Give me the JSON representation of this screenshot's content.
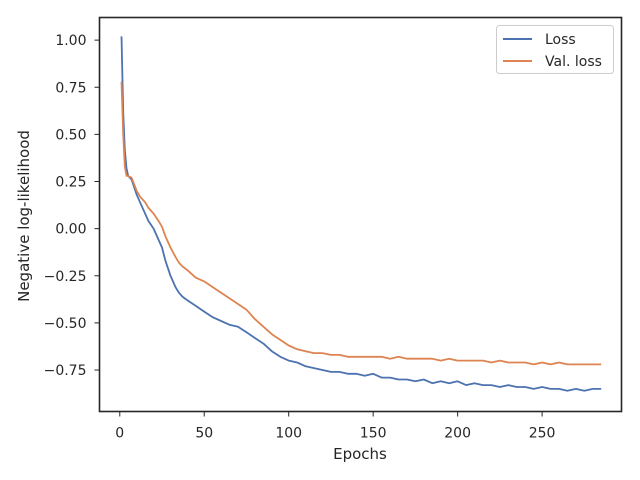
{
  "chart_data": {
    "type": "line",
    "title": "",
    "xlabel": "Epochs",
    "ylabel": "Negative log-likelihood",
    "xlim": [
      -12,
      297
    ],
    "ylim": [
      -0.97,
      1.12
    ],
    "xticks": [
      0,
      50,
      100,
      150,
      200,
      250
    ],
    "yticks": [
      1.0,
      0.75,
      0.5,
      0.25,
      0.0,
      -0.25,
      -0.5,
      -0.75
    ],
    "ytick_labels": [
      "1.00",
      "0.75",
      "0.50",
      "0.25",
      "0.00",
      "−0.25",
      "−0.50",
      "−0.75"
    ],
    "grid": false,
    "legend": "top-right",
    "series": [
      {
        "name": "Loss",
        "color": "#4c72b0",
        "x": [
          1,
          2,
          3,
          4,
          5,
          7,
          10,
          12,
          15,
          17,
          20,
          23,
          25,
          27,
          30,
          33,
          35,
          37,
          40,
          45,
          50,
          55,
          60,
          65,
          70,
          75,
          80,
          85,
          90,
          95,
          100,
          105,
          110,
          115,
          120,
          125,
          130,
          135,
          140,
          145,
          150,
          155,
          160,
          165,
          170,
          175,
          180,
          185,
          190,
          195,
          200,
          205,
          210,
          215,
          220,
          225,
          230,
          235,
          240,
          245,
          250,
          255,
          260,
          265,
          270,
          275,
          280,
          285
        ],
        "y": [
          1.02,
          0.62,
          0.42,
          0.32,
          0.28,
          0.26,
          0.18,
          0.14,
          0.08,
          0.04,
          0.0,
          -0.06,
          -0.1,
          -0.17,
          -0.25,
          -0.31,
          -0.34,
          -0.36,
          -0.38,
          -0.41,
          -0.44,
          -0.47,
          -0.49,
          -0.51,
          -0.52,
          -0.55,
          -0.58,
          -0.61,
          -0.65,
          -0.68,
          -0.7,
          -0.71,
          -0.73,
          -0.74,
          -0.75,
          -0.76,
          -0.76,
          -0.77,
          -0.77,
          -0.78,
          -0.77,
          -0.79,
          -0.79,
          -0.8,
          -0.8,
          -0.81,
          -0.8,
          -0.82,
          -0.81,
          -0.82,
          -0.81,
          -0.83,
          -0.82,
          -0.83,
          -0.83,
          -0.84,
          -0.83,
          -0.84,
          -0.84,
          -0.85,
          -0.84,
          -0.85,
          -0.85,
          -0.86,
          -0.85,
          -0.86,
          -0.85,
          -0.85
        ]
      },
      {
        "name": "Val. loss",
        "color": "#dd8452",
        "x": [
          1,
          2,
          3,
          4,
          5,
          7,
          10,
          12,
          15,
          17,
          20,
          23,
          25,
          27,
          30,
          33,
          35,
          37,
          40,
          45,
          50,
          55,
          60,
          65,
          70,
          75,
          80,
          85,
          90,
          95,
          100,
          105,
          110,
          115,
          120,
          125,
          130,
          135,
          140,
          145,
          150,
          155,
          160,
          165,
          170,
          175,
          180,
          185,
          190,
          195,
          200,
          205,
          210,
          215,
          220,
          225,
          230,
          235,
          240,
          245,
          250,
          255,
          260,
          265,
          270,
          275,
          280,
          285
        ],
        "y": [
          0.78,
          0.5,
          0.33,
          0.28,
          0.28,
          0.27,
          0.2,
          0.17,
          0.14,
          0.11,
          0.08,
          0.04,
          0.01,
          -0.04,
          -0.1,
          -0.15,
          -0.18,
          -0.2,
          -0.22,
          -0.26,
          -0.28,
          -0.31,
          -0.34,
          -0.37,
          -0.4,
          -0.43,
          -0.48,
          -0.52,
          -0.56,
          -0.59,
          -0.62,
          -0.64,
          -0.65,
          -0.66,
          -0.66,
          -0.67,
          -0.67,
          -0.68,
          -0.68,
          -0.68,
          -0.68,
          -0.68,
          -0.69,
          -0.68,
          -0.69,
          -0.69,
          -0.69,
          -0.69,
          -0.7,
          -0.69,
          -0.7,
          -0.7,
          -0.7,
          -0.7,
          -0.71,
          -0.7,
          -0.71,
          -0.71,
          -0.71,
          -0.72,
          -0.71,
          -0.72,
          -0.71,
          -0.72,
          -0.72,
          -0.72,
          -0.72,
          -0.72
        ]
      }
    ]
  }
}
